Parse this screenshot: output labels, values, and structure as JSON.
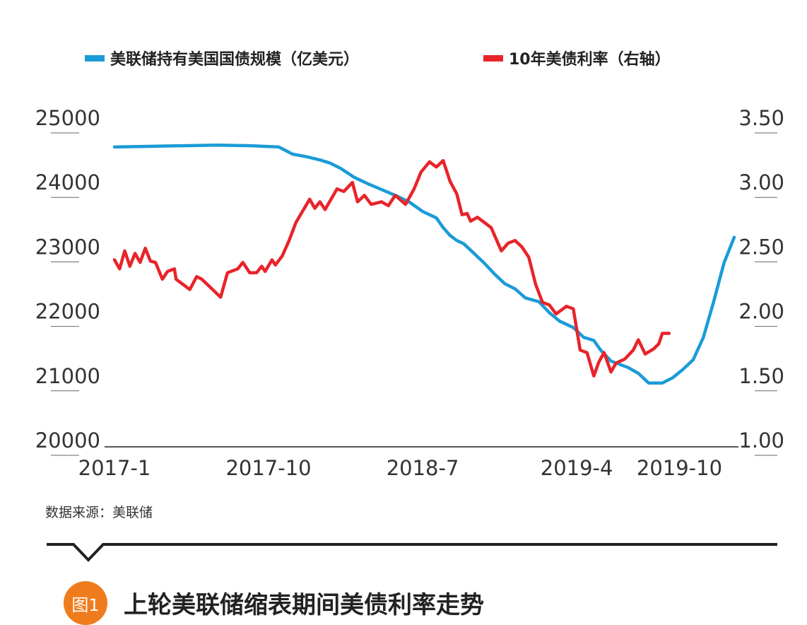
{
  "colors": {
    "holdings": "#1b9bd7",
    "yield": "#e8242a",
    "axis": "#222222",
    "badge": "#ef7c1c"
  },
  "legend": {
    "holdings_label": "美联储持有美国国债规模（亿美元）",
    "yield_label": "10年美债利率（右轴）"
  },
  "source_text": "数据来源：美联储",
  "figure": {
    "badge": "图1",
    "title": "上轮美联储缩表期间美债利率走势"
  },
  "chart_data": {
    "type": "line",
    "x_tick_labels": [
      "2017-1",
      "2017-10",
      "2018-7",
      "2019-4",
      "2019-10"
    ],
    "x_tick_indices": [
      0,
      9,
      18,
      27,
      33
    ],
    "left_axis": {
      "ticks": [
        "20000",
        "21000",
        "22000",
        "23000",
        "24000",
        "25000"
      ],
      "ylim": [
        20000,
        25000
      ]
    },
    "right_axis": {
      "ticks": [
        "1.00",
        "1.50",
        "2.00",
        "2.50",
        "3.00",
        "3.50"
      ],
      "ylim": [
        1.0,
        3.5
      ]
    },
    "series": [
      {
        "name": "美联储持有美国国债规模（亿美元）",
        "axis": "left",
        "points": [
          [
            0,
            24650
          ],
          [
            2,
            24660
          ],
          [
            4,
            24670
          ],
          [
            6,
            24680
          ],
          [
            8,
            24670
          ],
          [
            9.6,
            24650
          ],
          [
            10.4,
            24540
          ],
          [
            11.2,
            24500
          ],
          [
            12,
            24450
          ],
          [
            12.6,
            24400
          ],
          [
            13.2,
            24320
          ],
          [
            14,
            24180
          ],
          [
            14.8,
            24080
          ],
          [
            15.6,
            23990
          ],
          [
            16.4,
            23900
          ],
          [
            17.2,
            23800
          ],
          [
            18,
            23650
          ],
          [
            18.8,
            23550
          ],
          [
            19.2,
            23400
          ],
          [
            19.6,
            23280
          ],
          [
            20,
            23200
          ],
          [
            20.4,
            23150
          ],
          [
            21,
            23000
          ],
          [
            21.6,
            22850
          ],
          [
            22.2,
            22680
          ],
          [
            22.8,
            22530
          ],
          [
            23.4,
            22450
          ],
          [
            24,
            22310
          ],
          [
            24.8,
            22250
          ],
          [
            25.4,
            22080
          ],
          [
            26,
            21950
          ],
          [
            26.8,
            21850
          ],
          [
            27.4,
            21700
          ],
          [
            28,
            21650
          ],
          [
            28.4,
            21500
          ],
          [
            29,
            21330
          ],
          [
            30,
            21230
          ],
          [
            30.6,
            21140
          ],
          [
            31.2,
            20990
          ],
          [
            32,
            20990
          ],
          [
            32.6,
            21070
          ],
          [
            33.2,
            21200
          ],
          [
            33.8,
            21350
          ],
          [
            34.4,
            21700
          ],
          [
            35,
            22250
          ],
          [
            35.6,
            22850
          ],
          [
            36.2,
            23250
          ]
        ]
      },
      {
        "name": "10年美债利率（右轴）",
        "axis": "right",
        "points": [
          [
            0,
            2.45
          ],
          [
            0.3,
            2.38
          ],
          [
            0.6,
            2.52
          ],
          [
            0.9,
            2.4
          ],
          [
            1.2,
            2.5
          ],
          [
            1.5,
            2.43
          ],
          [
            1.8,
            2.54
          ],
          [
            2.1,
            2.44
          ],
          [
            2.4,
            2.43
          ],
          [
            2.8,
            2.3
          ],
          [
            3.1,
            2.36
          ],
          [
            3.5,
            2.38
          ],
          [
            3.6,
            2.3
          ],
          [
            4.4,
            2.22
          ],
          [
            4.8,
            2.32
          ],
          [
            5.1,
            2.3
          ],
          [
            6.2,
            2.16
          ],
          [
            6.6,
            2.35
          ],
          [
            7.2,
            2.38
          ],
          [
            7.5,
            2.43
          ],
          [
            7.9,
            2.35
          ],
          [
            8.3,
            2.35
          ],
          [
            8.6,
            2.4
          ],
          [
            8.8,
            2.36
          ],
          [
            9.2,
            2.45
          ],
          [
            9.4,
            2.41
          ],
          [
            9.8,
            2.48
          ],
          [
            10.2,
            2.6
          ],
          [
            10.6,
            2.74
          ],
          [
            11.4,
            2.92
          ],
          [
            11.7,
            2.85
          ],
          [
            12.0,
            2.9
          ],
          [
            12.3,
            2.84
          ],
          [
            13.0,
            3.0
          ],
          [
            13.4,
            2.98
          ],
          [
            13.9,
            3.05
          ],
          [
            14.2,
            2.9
          ],
          [
            14.6,
            2.95
          ],
          [
            15.0,
            2.88
          ],
          [
            15.6,
            2.9
          ],
          [
            16.0,
            2.87
          ],
          [
            16.4,
            2.95
          ],
          [
            17.0,
            2.88
          ],
          [
            17.5,
            3.0
          ],
          [
            17.9,
            3.13
          ],
          [
            18.4,
            3.21
          ],
          [
            18.8,
            3.17
          ],
          [
            19.2,
            3.22
          ],
          [
            19.6,
            3.06
          ],
          [
            20.0,
            2.96
          ],
          [
            20.3,
            2.8
          ],
          [
            20.6,
            2.81
          ],
          [
            20.8,
            2.75
          ],
          [
            21.2,
            2.78
          ],
          [
            21.6,
            2.74
          ],
          [
            22.0,
            2.7
          ],
          [
            22.6,
            2.52
          ],
          [
            23.0,
            2.58
          ],
          [
            23.4,
            2.6
          ],
          [
            23.8,
            2.55
          ],
          [
            24.2,
            2.47
          ],
          [
            24.6,
            2.26
          ],
          [
            25.0,
            2.12
          ],
          [
            25.4,
            2.1
          ],
          [
            25.8,
            2.03
          ],
          [
            26.4,
            2.09
          ],
          [
            26.8,
            2.07
          ],
          [
            27.2,
            1.75
          ],
          [
            27.6,
            1.73
          ],
          [
            28.0,
            1.55
          ],
          [
            28.3,
            1.66
          ],
          [
            28.6,
            1.73
          ],
          [
            29.0,
            1.58
          ],
          [
            29.3,
            1.65
          ],
          [
            29.8,
            1.68
          ],
          [
            30.3,
            1.75
          ],
          [
            30.6,
            1.83
          ],
          [
            31.0,
            1.72
          ],
          [
            31.5,
            1.76
          ],
          [
            31.8,
            1.8
          ],
          [
            32.0,
            1.88
          ],
          [
            32.4,
            1.88
          ]
        ]
      }
    ],
    "xlabel": "",
    "ylabel": "",
    "grid": false,
    "legend_position": "top"
  }
}
